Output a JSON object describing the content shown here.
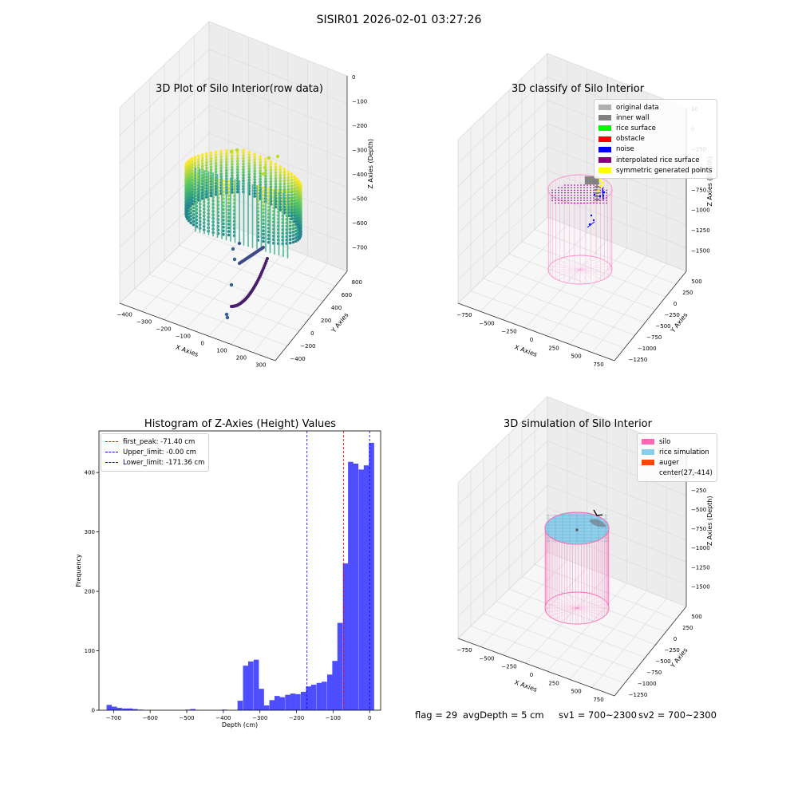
{
  "figure": {
    "suptitle": "SISIR01 2026-02-01 03:27:26",
    "status": {
      "flag": "flag = 29",
      "avg_depth": "avgDepth = 5 cm",
      "sv1": "sv1 = 700~2300",
      "sv2": "sv2 = 700~2300"
    }
  },
  "chart_data": [
    {
      "type": "scatter",
      "title": "3D Plot of Silo Interior(row data)",
      "xlabel": "X Axies",
      "ylabel": "Y Axies",
      "zlabel": "Z Axies (Depth)",
      "xticks": [
        "−400",
        "−300",
        "−200",
        "−100",
        "0",
        "100",
        "200",
        "300"
      ],
      "yticks": [
        "−400",
        "−200",
        "0",
        "200",
        "400",
        "600",
        "800"
      ],
      "zticks": [
        "0",
        "−100",
        "−200",
        "−300",
        "−400",
        "−500",
        "−600",
        "−700"
      ],
      "xlim": [
        -420,
        300
      ],
      "ylim": [
        -450,
        850
      ],
      "zlim": [
        -720,
        20
      ],
      "colormap": "viridis",
      "grid": true
    },
    {
      "type": "scatter",
      "title": "3D classify of Silo Interior",
      "xlabel": "X Axies",
      "ylabel": "Y Axies",
      "zlabel": "Z Axies (Depth)",
      "xticks": [
        "−750",
        "−500",
        "−250",
        "0",
        "250",
        "500",
        "750"
      ],
      "yticks": [
        "−1250",
        "−1000",
        "−750",
        "−500",
        "−250",
        "0",
        "250",
        "500"
      ],
      "zticks": [
        "10",
        "0",
        "−250",
        "−500",
        "−750",
        "−1000",
        "−1250",
        "−1500"
      ],
      "legend": {
        "position": "upper right",
        "entries": [
          {
            "label": "original data",
            "color": "#b0b0b0"
          },
          {
            "label": "inner wall",
            "color": "#808080"
          },
          {
            "label": "rice surface",
            "color": "#00ff00"
          },
          {
            "label": "obstacle",
            "color": "#ff0000"
          },
          {
            "label": "noise",
            "color": "#0000ff"
          },
          {
            "label": "interpolated rice surface",
            "color": "#800080"
          },
          {
            "label": "symmetric generated points",
            "color": "#ffff00"
          }
        ]
      },
      "grid": true
    },
    {
      "type": "bar",
      "title": "Histogram of Z-Axies (Height) Values",
      "xlabel": "Depth (cm)",
      "ylabel": "Frequency",
      "xlim": [
        -740,
        30
      ],
      "ylim": [
        0,
        470
      ],
      "xticks": [
        -700,
        -600,
        -500,
        -400,
        -300,
        -200,
        -100,
        0
      ],
      "yticks": [
        0,
        100,
        200,
        300,
        400
      ],
      "bin_width": 14.4,
      "bar_color": "#4444ff",
      "bins": [
        {
          "x": -712,
          "count": 9
        },
        {
          "x": -698,
          "count": 6
        },
        {
          "x": -684,
          "count": 4
        },
        {
          "x": -669,
          "count": 3
        },
        {
          "x": -655,
          "count": 3
        },
        {
          "x": -641,
          "count": 2
        },
        {
          "x": -626,
          "count": 1
        },
        {
          "x": -612,
          "count": 0
        },
        {
          "x": -598,
          "count": 0
        },
        {
          "x": -583,
          "count": 0
        },
        {
          "x": -569,
          "count": 0
        },
        {
          "x": -555,
          "count": 0
        },
        {
          "x": -540,
          "count": 0
        },
        {
          "x": -526,
          "count": 0
        },
        {
          "x": -511,
          "count": 0
        },
        {
          "x": -497,
          "count": 1
        },
        {
          "x": -483,
          "count": 2
        },
        {
          "x": -468,
          "count": 0
        },
        {
          "x": -454,
          "count": 0
        },
        {
          "x": -440,
          "count": 0
        },
        {
          "x": -425,
          "count": 0
        },
        {
          "x": -411,
          "count": 0
        },
        {
          "x": -397,
          "count": 1
        },
        {
          "x": -382,
          "count": 0
        },
        {
          "x": -368,
          "count": 0
        },
        {
          "x": -354,
          "count": 16
        },
        {
          "x": -339,
          "count": 75
        },
        {
          "x": -325,
          "count": 82
        },
        {
          "x": -310,
          "count": 85
        },
        {
          "x": -296,
          "count": 36
        },
        {
          "x": -282,
          "count": 8
        },
        {
          "x": -267,
          "count": 17
        },
        {
          "x": -253,
          "count": 24
        },
        {
          "x": -239,
          "count": 22
        },
        {
          "x": -224,
          "count": 26
        },
        {
          "x": -210,
          "count": 28
        },
        {
          "x": -196,
          "count": 27
        },
        {
          "x": -181,
          "count": 31
        },
        {
          "x": -167,
          "count": 40
        },
        {
          "x": -153,
          "count": 43
        },
        {
          "x": -138,
          "count": 46
        },
        {
          "x": -124,
          "count": 48
        },
        {
          "x": -109,
          "count": 60
        },
        {
          "x": -95,
          "count": 83
        },
        {
          "x": -81,
          "count": 147
        },
        {
          "x": -66,
          "count": 247
        },
        {
          "x": -52,
          "count": 418
        },
        {
          "x": -38,
          "count": 415
        },
        {
          "x": -23,
          "count": 405
        },
        {
          "x": -9,
          "count": 412
        },
        {
          "x": 5,
          "count": 450
        }
      ],
      "vlines": [
        {
          "label": "first_peak: -71.40 cm",
          "x": -71.4,
          "color": "#ff0000"
        },
        {
          "label": "Upper_limit: -0.00 cm",
          "x": 0,
          "color": "#0000ff"
        },
        {
          "label": "Lower_limit: -171.36 cm",
          "x": -171.36,
          "color": "#0000ff"
        }
      ],
      "legend": {
        "position": "upper left"
      }
    },
    {
      "type": "scatter",
      "title": "3D simulation of Silo Interior",
      "xlabel": "X Axies",
      "ylabel": "Y Axies",
      "zlabel": "Z Axies (Depth)",
      "xticks": [
        "−750",
        "−500",
        "−250",
        "0",
        "250",
        "500",
        "750"
      ],
      "yticks": [
        "−1250",
        "−1000",
        "−750",
        "−500",
        "−250",
        "0",
        "250",
        "500"
      ],
      "zticks": [
        "250",
        "0",
        "−250",
        "−500",
        "−750",
        "−1000",
        "−1250",
        "−1500"
      ],
      "legend": {
        "position": "upper right",
        "entries": [
          {
            "label": "silo",
            "color": "#ff69b4"
          },
          {
            "label": "rice simulation",
            "color": "#87ceeb"
          },
          {
            "label": "auger",
            "color": "#ff4500"
          },
          {
            "label": "center(27,-414)",
            "color": ""
          }
        ]
      },
      "grid": true
    }
  ]
}
